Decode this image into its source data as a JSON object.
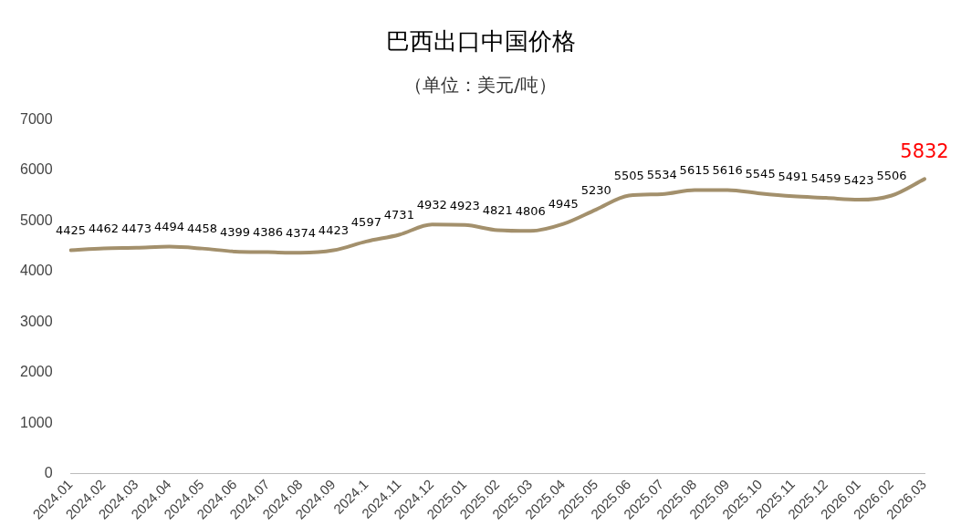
{
  "chart_data": {
    "type": "line",
    "title": "巴西出口中国价格",
    "subtitle": "（单位：美元/吨）",
    "categories": [
      "2024.01",
      "2024.02",
      "2024.03",
      "2024.04",
      "2024.05",
      "2024.06",
      "2024.07",
      "2024.08",
      "2024.09",
      "2024.1",
      "2024.11",
      "2024.12",
      "2025.01",
      "2025.02",
      "2025.03",
      "2025.04",
      "2025.05",
      "2025.06",
      "2025.07",
      "2025.08",
      "2025.09",
      "2025.10",
      "2025.11",
      "2025.12",
      "2026.01",
      "2026.02",
      "2026.03"
    ],
    "series": [
      {
        "color": "#a3906c",
        "values": [
          4425,
          4462,
          4473,
          4494,
          4458,
          4399,
          4386,
          4374,
          4423,
          4597,
          4731,
          4932,
          4923,
          4821,
          4806,
          4945,
          5230,
          5505,
          5534,
          5615,
          5616,
          5545,
          5491,
          5459,
          5423,
          5506,
          5832
        ]
      }
    ],
    "ylim": [
      0,
      7000
    ],
    "yticks": [
      0,
      1000,
      2000,
      3000,
      4000,
      5000,
      6000,
      7000
    ],
    "grid": false,
    "legend": false,
    "marker": "none",
    "line_style": "solid",
    "data_labels": true
  }
}
